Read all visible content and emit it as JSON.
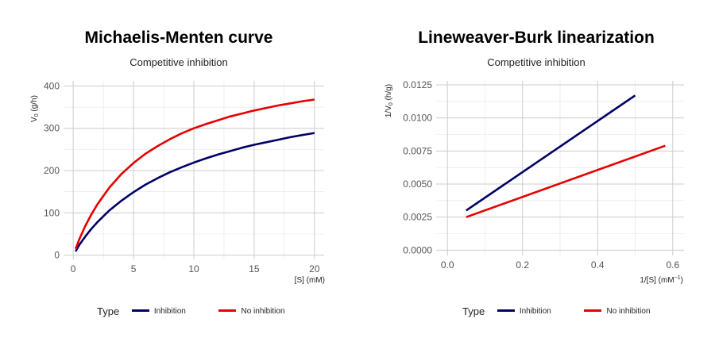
{
  "chart_data": [
    {
      "type": "line",
      "title": "Michaelis-Menten curve",
      "subtitle": "Competitive inhibition",
      "xlabel": "[S] (mM)",
      "ylabel_main": "V",
      "ylabel_sub": "0",
      "ylabel_unit": " (g/h)",
      "xlim": [
        -0.8,
        20.8
      ],
      "ylim": [
        -10,
        412
      ],
      "xticks": [
        0,
        5,
        10,
        15,
        20
      ],
      "xticklabels": [
        "0",
        "5",
        "10",
        "15",
        "20"
      ],
      "yticks": [
        0,
        100,
        200,
        300,
        400
      ],
      "yticklabels": [
        "0",
        "100",
        "200",
        "300",
        "400"
      ],
      "grid": true,
      "legend_position": "bottom",
      "legend_title": "Type",
      "series": [
        {
          "name": "Inhibition",
          "color": "#000066",
          "x": [
            0.2,
            0.5,
            1,
            1.5,
            2,
            3,
            4,
            5,
            6,
            7,
            8,
            9,
            10,
            11,
            12,
            13,
            14,
            15,
            16,
            17,
            18,
            19,
            20
          ],
          "y": [
            9,
            24,
            44,
            62,
            78,
            106,
            129,
            149,
            167,
            182,
            196,
            208,
            219,
            229,
            238,
            246,
            254,
            261,
            267,
            273,
            279,
            284,
            289
          ]
        },
        {
          "name": "No inhibition",
          "color": "#e60000",
          "x": [
            0.2,
            0.5,
            1,
            1.5,
            2,
            3,
            4,
            5,
            6,
            7,
            8,
            9,
            10,
            11,
            12,
            13,
            14,
            15,
            16,
            17,
            18,
            19,
            20
          ],
          "y": [
            15,
            37,
            69,
            96,
            120,
            160,
            192,
            218,
            240,
            258,
            274,
            288,
            300,
            310,
            319,
            328,
            335,
            342,
            348,
            354,
            359,
            364,
            368
          ]
        }
      ]
    },
    {
      "type": "line",
      "title": "Lineweaver-Burk linearization",
      "subtitle": "Competitive inhibition",
      "xlabel_main": "1/[S] (mM",
      "xlabel_sup": "−1",
      "xlabel_end": ")",
      "ylabel_main": "1/V",
      "ylabel_sub": "0",
      "ylabel_unit": " (h/g)",
      "xlim": [
        -0.03,
        0.63
      ],
      "ylim": [
        -0.0004,
        0.0128
      ],
      "xticks": [
        0.0,
        0.2,
        0.4,
        0.6
      ],
      "xticklabels": [
        "0.0",
        "0.2",
        "0.4",
        "0.6"
      ],
      "yticks": [
        0.0,
        0.0025,
        0.005,
        0.0075,
        0.01,
        0.0125
      ],
      "yticklabels": [
        "0.0000",
        "0.0025",
        "0.0050",
        "0.0075",
        "0.0100",
        "0.0125"
      ],
      "grid": true,
      "legend_position": "bottom",
      "legend_title": "Type",
      "series": [
        {
          "name": "Inhibition",
          "color": "#000066",
          "x": [
            0.05,
            0.5
          ],
          "y": [
            0.003,
            0.0117
          ]
        },
        {
          "name": "No inhibition",
          "color": "#e60000",
          "x": [
            0.05,
            0.58
          ],
          "y": [
            0.0025,
            0.0079
          ]
        }
      ]
    }
  ]
}
